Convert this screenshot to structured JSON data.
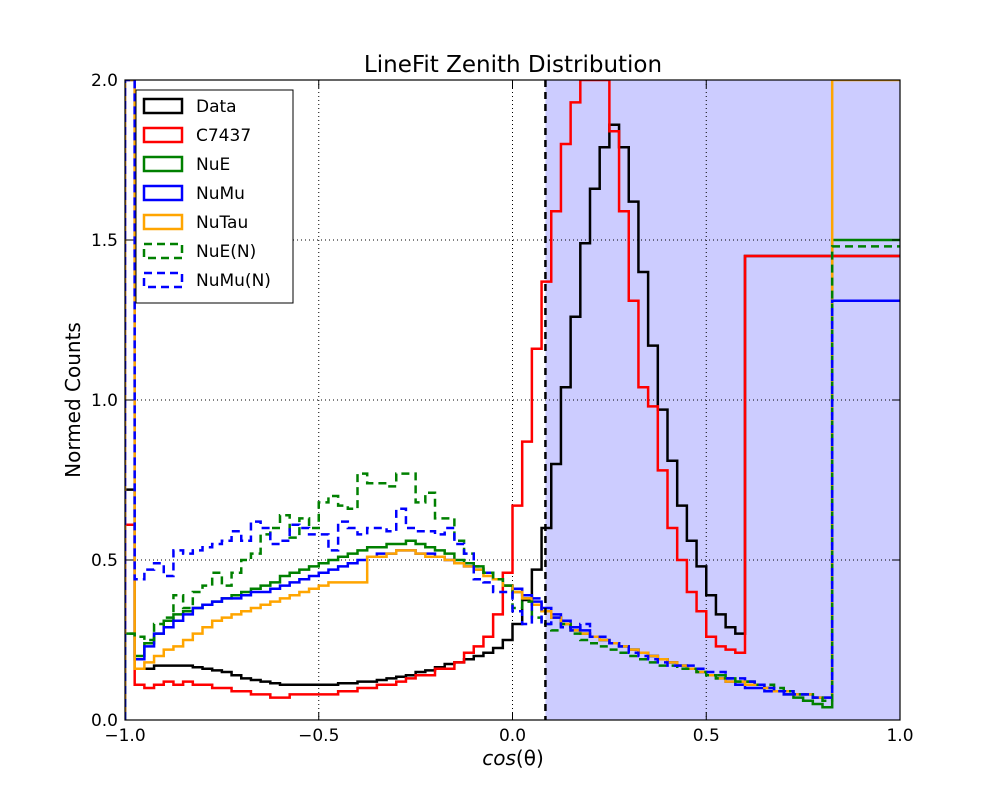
{
  "chart_data": {
    "type": "line",
    "title": "LineFit Zenith Distribution",
    "xlabel_prefix": "cos",
    "xlabel_suffix": "(θ)",
    "ylabel": "Normed Counts",
    "xlim": [
      -1.0,
      1.0
    ],
    "ylim": [
      0.0,
      2.0
    ],
    "xticks": [
      -1.0,
      -0.5,
      0.0,
      0.5,
      1.0
    ],
    "xtick_labels": [
      "−1.0",
      "−0.5",
      "0.0",
      "0.5",
      "1.0"
    ],
    "yticks": [
      0.0,
      0.5,
      1.0,
      1.5,
      2.0
    ],
    "ytick_labels": [
      "0.0",
      "0.5",
      "1.0",
      "1.5",
      "2.0"
    ],
    "grid": true,
    "legend_position": "top-left",
    "cut_value": 0.085,
    "shaded_color": "#ccccff",
    "bin_edges": [
      -0.975,
      -0.95,
      -0.925,
      -0.9,
      -0.875,
      -0.85,
      -0.825,
      -0.8,
      -0.775,
      -0.75,
      -0.725,
      -0.7,
      -0.675,
      -0.65,
      -0.625,
      -0.6,
      -0.575,
      -0.55,
      -0.525,
      -0.5,
      -0.475,
      -0.45,
      -0.425,
      -0.4,
      -0.375,
      -0.35,
      -0.325,
      -0.3,
      -0.275,
      -0.25,
      -0.225,
      -0.2,
      -0.175,
      -0.15,
      -0.125,
      -0.1,
      -0.075,
      -0.05,
      -0.025,
      0.0,
      0.025,
      0.05,
      0.075,
      0.1,
      0.125,
      0.15,
      0.175,
      0.2,
      0.225,
      0.25,
      0.275,
      0.3,
      0.325,
      0.35,
      0.375,
      0.4,
      0.425,
      0.45,
      0.475,
      0.5,
      0.525,
      0.55,
      0.575,
      0.6,
      0.625,
      0.65,
      0.675,
      0.7,
      0.725,
      0.75,
      0.775,
      0.8,
      0.825,
      0.85,
      0.875,
      0.9,
      0.925,
      0.95,
      0.975
    ],
    "series": [
      {
        "name": "Data",
        "color": "#000000",
        "dashed": false,
        "edge_left": 0.72,
        "edge_right": 1.45,
        "values": [
          0.16,
          0.16,
          0.17,
          0.17,
          0.17,
          0.17,
          0.165,
          0.16,
          0.155,
          0.15,
          0.14,
          0.13,
          0.125,
          0.12,
          0.115,
          0.11,
          0.11,
          0.11,
          0.11,
          0.11,
          0.11,
          0.115,
          0.115,
          0.12,
          0.12,
          0.125,
          0.13,
          0.135,
          0.14,
          0.15,
          0.155,
          0.165,
          0.175,
          0.18,
          0.19,
          0.2,
          0.21,
          0.225,
          0.25,
          0.3,
          0.375,
          0.47,
          0.6,
          0.8,
          1.04,
          1.26,
          1.49,
          1.66,
          1.79,
          1.86,
          1.79,
          1.62,
          1.4,
          1.17,
          0.97,
          0.81,
          0.67,
          0.56,
          0.48,
          0.39,
          0.33,
          0.29,
          0.27
        ],
        "x_start_index": 0
      },
      {
        "name": "C7437",
        "color": "#ff0000",
        "dashed": false,
        "edge_left": 0.61,
        "edge_right": 1.45,
        "values": [
          0.11,
          0.1,
          0.11,
          0.12,
          0.11,
          0.12,
          0.11,
          0.11,
          0.1,
          0.1,
          0.09,
          0.09,
          0.08,
          0.08,
          0.07,
          0.07,
          0.08,
          0.08,
          0.08,
          0.08,
          0.08,
          0.09,
          0.09,
          0.1,
          0.1,
          0.11,
          0.11,
          0.12,
          0.13,
          0.14,
          0.14,
          0.16,
          0.16,
          0.18,
          0.21,
          0.23,
          0.26,
          0.33,
          0.46,
          0.67,
          0.87,
          1.16,
          1.37,
          1.59,
          1.8,
          1.93,
          2.02,
          2.06,
          2.02,
          1.84,
          1.59,
          1.31,
          1.04,
          0.98,
          0.78,
          0.6,
          0.5,
          0.4,
          0.34,
          0.26,
          0.23,
          0.22,
          0.21
        ],
        "x_start_index": 0
      },
      {
        "name": "NuE",
        "color": "#008000",
        "dashed": false,
        "edge_left": 0.27,
        "edge_right": 1.5,
        "values": [
          0.2,
          0.24,
          0.27,
          0.31,
          0.33,
          0.34,
          0.35,
          0.36,
          0.37,
          0.38,
          0.39,
          0.4,
          0.41,
          0.42,
          0.43,
          0.45,
          0.46,
          0.47,
          0.48,
          0.49,
          0.5,
          0.51,
          0.52,
          0.53,
          0.54,
          0.54,
          0.55,
          0.55,
          0.56,
          0.55,
          0.54,
          0.53,
          0.52,
          0.5,
          0.49,
          0.48,
          0.46,
          0.44,
          0.42,
          0.4,
          0.38,
          0.36,
          0.34,
          0.32,
          0.3,
          0.28,
          0.27,
          0.26,
          0.25,
          0.24,
          0.23,
          0.22,
          0.21,
          0.2,
          0.19,
          0.18,
          0.17,
          0.16,
          0.15,
          0.14,
          0.14,
          0.13,
          0.12,
          0.12,
          0.11,
          0.1,
          0.09,
          0.08,
          0.07,
          0.06,
          0.05,
          0.04
        ],
        "x_start_index": 0
      },
      {
        "name": "NuMu",
        "color": "#0000ff",
        "dashed": false,
        "edge_left": 2.0,
        "edge_right": 1.31,
        "values": [
          0.19,
          0.23,
          0.27,
          0.29,
          0.31,
          0.33,
          0.35,
          0.36,
          0.37,
          0.38,
          0.38,
          0.39,
          0.4,
          0.4,
          0.41,
          0.42,
          0.43,
          0.44,
          0.45,
          0.46,
          0.47,
          0.48,
          0.49,
          0.5,
          0.51,
          0.52,
          0.52,
          0.53,
          0.53,
          0.52,
          0.52,
          0.51,
          0.5,
          0.49,
          0.48,
          0.47,
          0.46,
          0.44,
          0.42,
          0.41,
          0.39,
          0.37,
          0.35,
          0.33,
          0.31,
          0.29,
          0.28,
          0.26,
          0.25,
          0.24,
          0.23,
          0.22,
          0.21,
          0.2,
          0.19,
          0.18,
          0.17,
          0.16,
          0.15,
          0.14,
          0.13,
          0.12,
          0.11,
          0.1,
          0.1,
          0.09,
          0.09,
          0.08,
          0.08,
          0.08,
          0.07,
          0.07
        ],
        "x_start_index": 0
      },
      {
        "name": "NuTau",
        "color": "#ffa500",
        "dashed": false,
        "edge_left": 2.0,
        "edge_right": 2.0,
        "values": [
          0.16,
          0.18,
          0.2,
          0.22,
          0.23,
          0.25,
          0.27,
          0.29,
          0.31,
          0.32,
          0.33,
          0.34,
          0.35,
          0.36,
          0.37,
          0.38,
          0.39,
          0.4,
          0.41,
          0.42,
          0.43,
          0.43,
          0.43,
          0.43,
          0.51,
          0.51,
          0.52,
          0.53,
          0.53,
          0.52,
          0.51,
          0.51,
          0.5,
          0.49,
          0.48,
          0.47,
          0.45,
          0.44,
          0.42,
          0.4,
          0.38,
          0.36,
          0.34,
          0.32,
          0.3,
          0.28,
          0.27,
          0.26,
          0.25,
          0.24,
          0.23,
          0.22,
          0.21,
          0.2,
          0.19,
          0.18,
          0.17,
          0.16,
          0.15,
          0.14,
          0.13,
          0.12,
          0.12,
          0.11,
          0.11,
          0.1,
          0.09,
          0.09,
          0.08,
          0.08,
          0.07,
          0.07
        ],
        "x_start_index": 0
      },
      {
        "name": "NuE(N)",
        "color": "#008000",
        "dashed": true,
        "edge_left": 0.27,
        "edge_right": 1.48,
        "values": [
          0.26,
          0.25,
          0.3,
          0.32,
          0.39,
          0.35,
          0.4,
          0.42,
          0.46,
          0.42,
          0.46,
          0.5,
          0.52,
          0.58,
          0.6,
          0.64,
          0.57,
          0.63,
          0.6,
          0.68,
          0.7,
          0.67,
          0.66,
          0.77,
          0.74,
          0.74,
          0.73,
          0.77,
          0.77,
          0.68,
          0.71,
          0.63,
          0.63,
          0.56,
          0.52,
          0.48,
          0.46,
          0.44,
          0.42,
          0.35,
          0.37,
          0.32,
          0.3,
          0.28,
          0.3,
          0.27,
          0.25,
          0.24,
          0.23,
          0.22,
          0.21,
          0.2,
          0.19,
          0.18,
          0.17,
          0.17,
          0.16,
          0.16,
          0.15,
          0.14,
          0.13,
          0.13,
          0.12,
          0.12,
          0.11,
          0.11,
          0.1,
          0.09,
          0.08,
          0.08,
          0.07,
          0.06
        ],
        "x_start_index": 0
      },
      {
        "name": "NuMu(N)",
        "color": "#0000ff",
        "dashed": true,
        "edge_left": 2.0,
        "edge_right": 1.31,
        "values": [
          0.44,
          0.47,
          0.49,
          0.45,
          0.53,
          0.52,
          0.53,
          0.54,
          0.55,
          0.56,
          0.59,
          0.56,
          0.62,
          0.6,
          0.55,
          0.56,
          0.61,
          0.6,
          0.58,
          0.58,
          0.53,
          0.62,
          0.6,
          0.58,
          0.6,
          0.6,
          0.59,
          0.66,
          0.6,
          0.59,
          0.59,
          0.58,
          0.6,
          0.55,
          0.52,
          0.44,
          0.43,
          0.4,
          0.4,
          0.34,
          0.3,
          0.38,
          0.3,
          0.32,
          0.29,
          0.28,
          0.3,
          0.26,
          0.26,
          0.24,
          0.23,
          0.21,
          0.2,
          0.19,
          0.18,
          0.17,
          0.17,
          0.17,
          0.16,
          0.15,
          0.15,
          0.13,
          0.13,
          0.12,
          0.11,
          0.1,
          0.09,
          0.09,
          0.08,
          0.08,
          0.07,
          0.07
        ],
        "x_start_index": 0
      }
    ]
  }
}
